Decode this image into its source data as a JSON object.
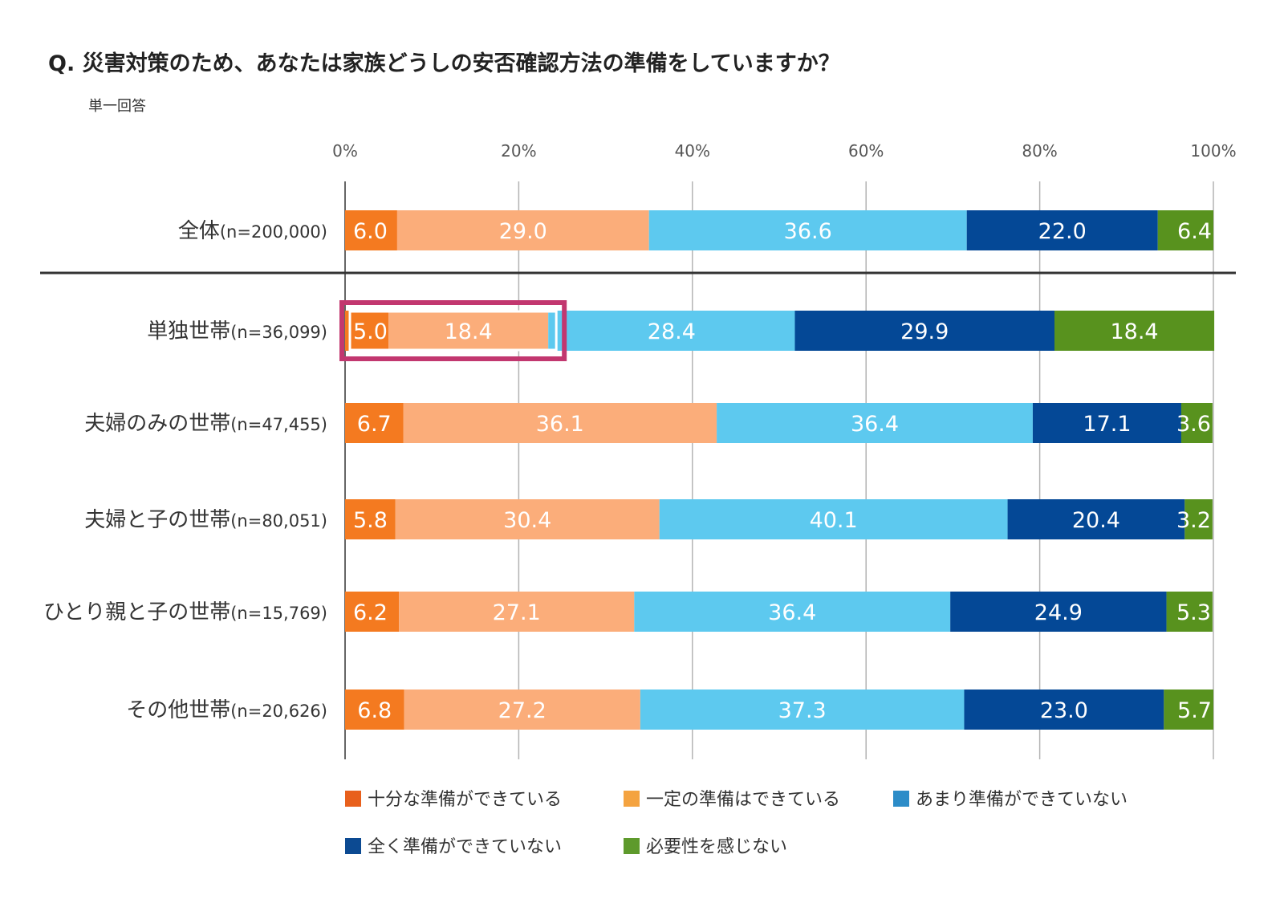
{
  "chart_data": {
    "type": "bar",
    "orientation": "horizontal",
    "stacked": true,
    "title": "Q. 災害対策のため、あなたは家族どうしの安否確認方法の準備をしていますか？",
    "subtitle": "単一回答",
    "xlim": [
      0,
      100
    ],
    "x_ticks": [
      "0%",
      "20%",
      "40%",
      "60%",
      "80%",
      "100%"
    ],
    "grid": true,
    "legend_position": "bottom",
    "categories": [
      {
        "label": "全体",
        "n": "(n=200,000)"
      },
      {
        "label": "単独世帯",
        "n": "(n=36,099)"
      },
      {
        "label": "夫婦のみの世帯",
        "n": "(n=47,455)"
      },
      {
        "label": "夫婦と子の世帯",
        "n": "(n=80,051)"
      },
      {
        "label": "ひとり親と子の世帯",
        "n": "(n=15,769)"
      },
      {
        "label": "その他世帯",
        "n": "(n=20,626)"
      }
    ],
    "series": [
      {
        "name": "十分な準備ができている",
        "color": "#f47a20",
        "legend_color": "#e8601c",
        "values": [
          6.0,
          5.0,
          6.7,
          5.8,
          6.2,
          6.8
        ]
      },
      {
        "name": "一定の準備はできている",
        "color": "#fbad7a",
        "legend_color": "#f4a340",
        "values": [
          29.0,
          18.4,
          36.1,
          30.4,
          27.1,
          27.2
        ]
      },
      {
        "name": "あまり準備ができていない",
        "color": "#5dc9ef",
        "legend_color": "#2c8cc8",
        "values": [
          36.6,
          28.4,
          36.4,
          40.1,
          36.4,
          37.3
        ]
      },
      {
        "name": "全く準備ができていない",
        "color": "#044896",
        "legend_color": "#0c4a92",
        "values": [
          22.0,
          29.9,
          17.1,
          20.4,
          24.9,
          23.0
        ]
      },
      {
        "name": "必要性を感じない",
        "color": "#58921e",
        "legend_color": "#5e9a2c",
        "values": [
          6.4,
          18.4,
          3.6,
          3.2,
          5.3,
          5.7
        ]
      }
    ],
    "highlight": {
      "row": 1,
      "series": [
        0,
        1
      ],
      "color": "#c2376f"
    }
  }
}
